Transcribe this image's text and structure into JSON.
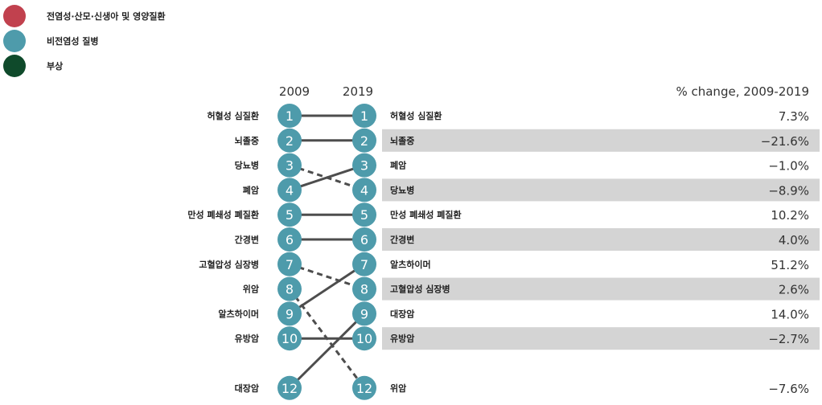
{
  "legend": [
    {
      "label": "전염성·산모·신생아 및 영양질환",
      "color": "#c1414e"
    },
    {
      "label": "비전염성 질병",
      "color": "#4e9bab"
    },
    {
      "label": "부상",
      "color": "#0f4a2b"
    }
  ],
  "chart_data": {
    "type": "bump",
    "title": "",
    "header_left": "2009",
    "header_right": "2019",
    "header_change": "% change, 2009-2019",
    "line_style_note": "solid = rank rose or unchanged, dashed = rank fell",
    "colors": {
      "node": "#4e9bab",
      "line": "#4d4d4d",
      "stripe": "#d4d4d4"
    },
    "left": [
      {
        "rank": 1,
        "rank_label": "1",
        "label": "허혈성 심질환"
      },
      {
        "rank": 2,
        "rank_label": "2",
        "label": "뇌졸중"
      },
      {
        "rank": 3,
        "rank_label": "3",
        "label": "당뇨병"
      },
      {
        "rank": 4,
        "rank_label": "4",
        "label": "폐암"
      },
      {
        "rank": 5,
        "rank_label": "5",
        "label": "만성 폐쇄성 폐질환"
      },
      {
        "rank": 6,
        "rank_label": "6",
        "label": "간경변"
      },
      {
        "rank": 7,
        "rank_label": "7",
        "label": "고혈압성 심장병"
      },
      {
        "rank": 8,
        "rank_label": "8",
        "label": "위암"
      },
      {
        "rank": 9,
        "rank_label": "9",
        "label": "알츠하이머"
      },
      {
        "rank": 10,
        "rank_label": "10",
        "label": "유방암"
      },
      {
        "rank": 12,
        "rank_label": "12",
        "label": "대장암"
      }
    ],
    "right": [
      {
        "rank": 1,
        "rank_label": "1",
        "label": "허혈성 심질환",
        "change": "7.3%"
      },
      {
        "rank": 2,
        "rank_label": "2",
        "label": "뇌졸중",
        "change": "−21.6%"
      },
      {
        "rank": 3,
        "rank_label": "3",
        "label": "폐암",
        "change": "−1.0%"
      },
      {
        "rank": 4,
        "rank_label": "4",
        "label": "당뇨병",
        "change": "−8.9%"
      },
      {
        "rank": 5,
        "rank_label": "5",
        "label": "만성 폐쇄성 폐질환",
        "change": "10.2%"
      },
      {
        "rank": 6,
        "rank_label": "6",
        "label": "간경변",
        "change": "4.0%"
      },
      {
        "rank": 7,
        "rank_label": "7",
        "label": "알츠하이머",
        "change": "51.2%"
      },
      {
        "rank": 8,
        "rank_label": "8",
        "label": "고혈압성 심장병",
        "change": "2.6%"
      },
      {
        "rank": 9,
        "rank_label": "9",
        "label": "대장암",
        "change": "14.0%"
      },
      {
        "rank": 10,
        "rank_label": "10",
        "label": "유방암",
        "change": "−2.7%"
      },
      {
        "rank": 12,
        "rank_label": "12",
        "label": "위암",
        "change": "−7.6%"
      }
    ]
  }
}
